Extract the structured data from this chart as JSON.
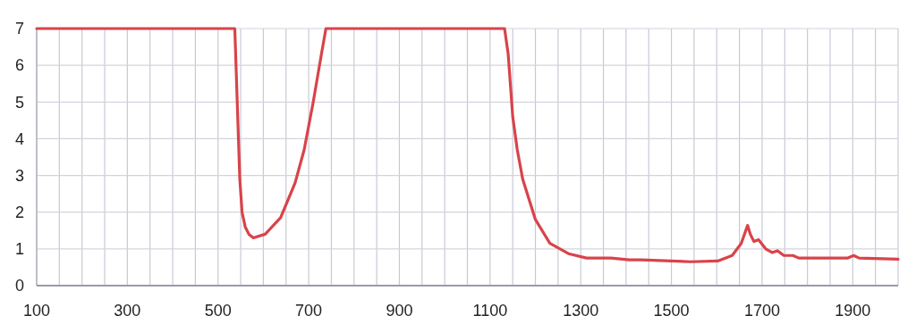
{
  "chart_data": {
    "type": "line",
    "grid": true,
    "xlim": [
      100,
      2000
    ],
    "ylim": [
      0,
      7
    ],
    "xticks": [
      100,
      {
        "value": 150,
        "label": null
      },
      {
        "value": 200,
        "label": null
      },
      {
        "value": 250,
        "label": null
      },
      300,
      {
        "value": 350,
        "label": null
      },
      {
        "value": 400,
        "label": null
      },
      {
        "value": 450,
        "label": null
      },
      500,
      {
        "value": 550,
        "label": null
      },
      {
        "value": 600,
        "label": null
      },
      {
        "value": 650,
        "label": null
      },
      700,
      {
        "value": 750,
        "label": null
      },
      {
        "value": 800,
        "label": null
      },
      {
        "value": 850,
        "label": null
      },
      900,
      {
        "value": 950,
        "label": null
      },
      {
        "value": 1000,
        "label": null
      },
      {
        "value": 1050,
        "label": null
      },
      1100,
      {
        "value": 1150,
        "label": null
      },
      {
        "value": 1200,
        "label": null
      },
      {
        "value": 1250,
        "label": null
      },
      1300,
      {
        "value": 1350,
        "label": null
      },
      {
        "value": 1400,
        "label": null
      },
      {
        "value": 1450,
        "label": null
      },
      1500,
      {
        "value": 1550,
        "label": null
      },
      {
        "value": 1600,
        "label": null
      },
      {
        "value": 1650,
        "label": null
      },
      1700,
      {
        "value": 1750,
        "label": null
      },
      {
        "value": 1800,
        "label": null
      },
      {
        "value": 1850,
        "label": null
      },
      1900,
      {
        "value": 1950,
        "label": null
      },
      {
        "value": 2000,
        "label": null
      }
    ],
    "yticks": [
      0,
      1,
      2,
      3,
      4,
      5,
      6,
      7
    ],
    "series": [
      {
        "color": "#d9434a",
        "x": [
          100,
          537,
          548,
          553,
          560,
          568,
          578,
          604,
          638,
          670,
          690,
          710,
          728,
          738,
          1132,
          1140,
          1150,
          1160,
          1172,
          1200,
          1232,
          1273,
          1313,
          1367,
          1407,
          1433,
          1542,
          1602,
          1634,
          1654,
          1668,
          1674,
          1682,
          1692,
          1708,
          1722,
          1734,
          1748,
          1768,
          1781,
          1888,
          1902,
          1914,
          2000
        ],
        "values": [
          7,
          7,
          2.9,
          2.0,
          1.6,
          1.4,
          1.3,
          1.4,
          1.85,
          2.8,
          3.7,
          5.0,
          6.3,
          7,
          7,
          6.3,
          4.6,
          3.7,
          2.9,
          1.8,
          1.15,
          0.87,
          0.75,
          0.75,
          0.7,
          0.7,
          0.65,
          0.67,
          0.82,
          1.15,
          1.64,
          1.4,
          1.2,
          1.25,
          1.0,
          0.9,
          0.95,
          0.82,
          0.82,
          0.75,
          0.75,
          0.82,
          0.75,
          0.72
        ]
      }
    ]
  }
}
